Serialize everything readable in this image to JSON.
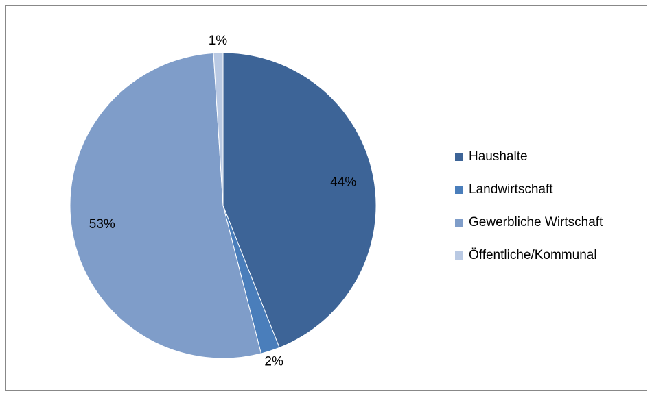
{
  "chart_data": {
    "type": "pie",
    "categories": [
      "Haushalte",
      "Landwirtschaft",
      "Gewerbliche Wirtschaft",
      "Öffentliche/Kommunal"
    ],
    "values": [
      44,
      2,
      53,
      1
    ],
    "value_labels": [
      "44%",
      "2%",
      "53%",
      "1%"
    ],
    "colors": [
      "#3d6497",
      "#4a7ebb",
      "#7f9dc9",
      "#b9c9e3"
    ],
    "legend": "right"
  }
}
